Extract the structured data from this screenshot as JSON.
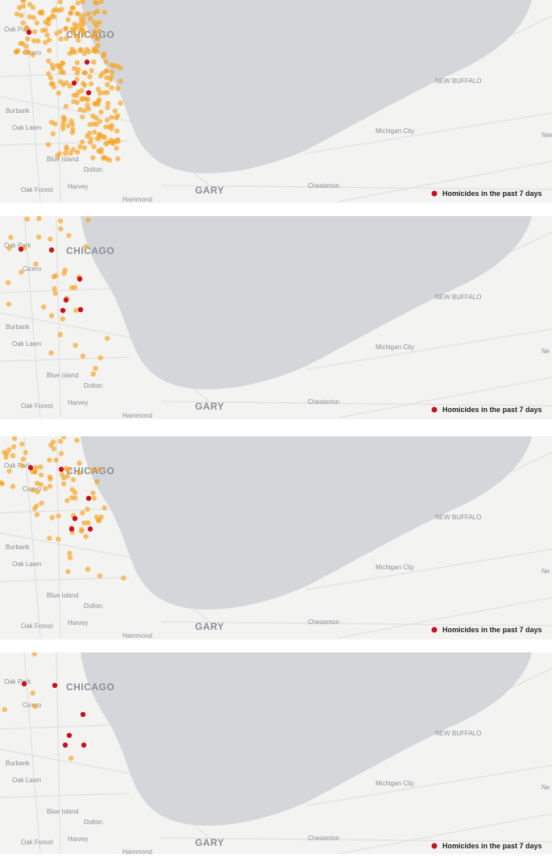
{
  "panels": [
    {
      "places": [
        "Oak Park",
        "CHICAGO",
        "Cicero",
        "NEW BUFFALO",
        "Burbank",
        "Oak Lawn",
        "Michigan City",
        "New",
        "Blue Island",
        "Dolton",
        "Oak Forest",
        "Harvey",
        "GARY",
        "Chesterton",
        "Hammond"
      ],
      "legend": "Homicides in the past 7 days"
    },
    {
      "places": [
        "Oak Park",
        "CHICAGO",
        "Cicero",
        "NEW BUFFALO",
        "Burbank",
        "Oak Lawn",
        "Michigan City",
        "Ne",
        "Blue Island",
        "Dolton",
        "Oak Forest",
        "Harvey",
        "GARY",
        "Chesterton",
        "Hammond"
      ],
      "legend": "Homicides in the past 7 days"
    },
    {
      "places": [
        "Oak Park",
        "CHICAGO",
        "Cicero",
        "NEW BUFFALO",
        "Burbank",
        "Oak Lawn",
        "Michigan City",
        "Ne",
        "Blue Island",
        "Dolton",
        "Oak Forest",
        "Harvey",
        "GARY",
        "Chesterton",
        "Hammond"
      ],
      "legend": "Homicides in the past 7 days"
    },
    {
      "places": [
        "Oak Park",
        "CHICAGO",
        "Cicero",
        "NEW BUFFALO",
        "Burbank",
        "Oak Lawn",
        "Michigan City",
        "Ne",
        "Blue Island",
        "Dolton",
        "Oak Forest",
        "Harvey",
        "GARY",
        "Chesterton",
        "Hammond"
      ],
      "legend": "Homicides in the past 7 days"
    }
  ]
}
